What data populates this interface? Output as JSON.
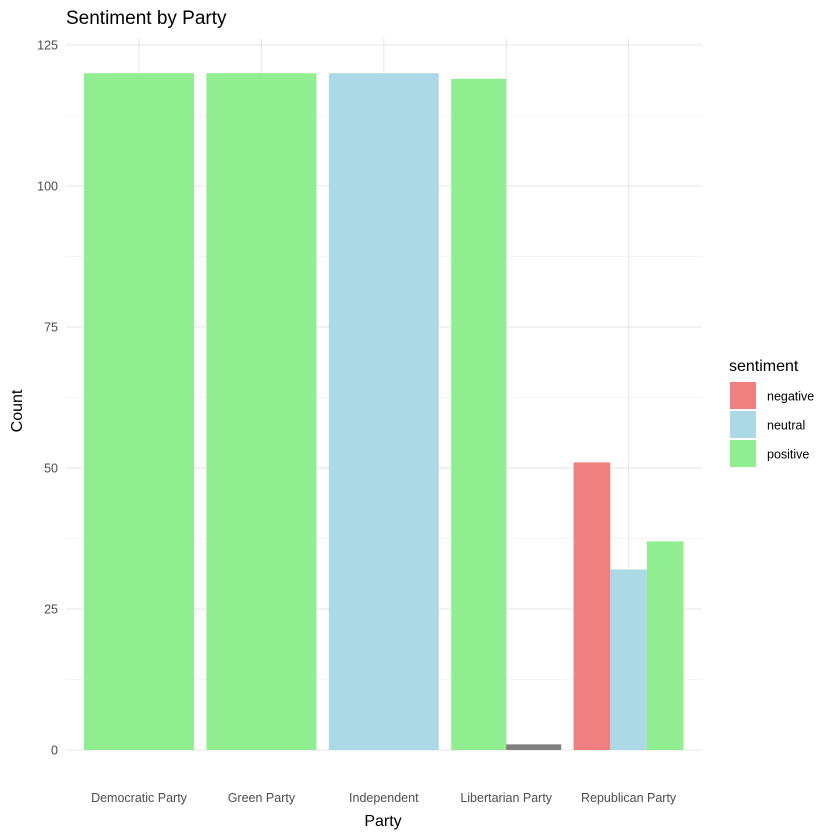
{
  "chart_data": {
    "type": "bar",
    "title": "Sentiment by Party",
    "xlabel": "Party",
    "ylabel": "Count",
    "ylim": [
      0,
      125
    ],
    "yticks": [
      0,
      25,
      50,
      75,
      100,
      125
    ],
    "grid": true,
    "legend": {
      "title": "sentiment",
      "placement": "right",
      "entries": [
        {
          "label": "negative",
          "color": "#F08080"
        },
        {
          "label": "neutral",
          "color": "#ADD8E6"
        },
        {
          "label": "positive",
          "color": "#90EE90"
        }
      ]
    },
    "categories": [
      "Democratic Party",
      "Green Party",
      "Independent",
      "Libertarian Party",
      "Republican Party"
    ],
    "groups": [
      {
        "category": "Democratic Party",
        "bars": [
          {
            "sentiment": "positive",
            "value": 120
          }
        ]
      },
      {
        "category": "Green Party",
        "bars": [
          {
            "sentiment": "positive",
            "value": 120
          }
        ]
      },
      {
        "category": "Independent",
        "bars": [
          {
            "sentiment": "neutral",
            "value": 120
          }
        ]
      },
      {
        "category": "Libertarian Party",
        "bars": [
          {
            "sentiment": "positive",
            "value": 119
          },
          {
            "sentiment": "NA",
            "value": 1
          }
        ]
      },
      {
        "category": "Republican Party",
        "bars": [
          {
            "sentiment": "negative",
            "value": 51
          },
          {
            "sentiment": "neutral",
            "value": 32
          },
          {
            "sentiment": "positive",
            "value": 37
          }
        ]
      }
    ],
    "colors": {
      "negative": "#F08080",
      "neutral": "#ADD8E6",
      "positive": "#90EE90",
      "NA": "#7F7F7F"
    },
    "panel_background": "#FFFFFF",
    "grid_color": "#EBEBEB"
  }
}
